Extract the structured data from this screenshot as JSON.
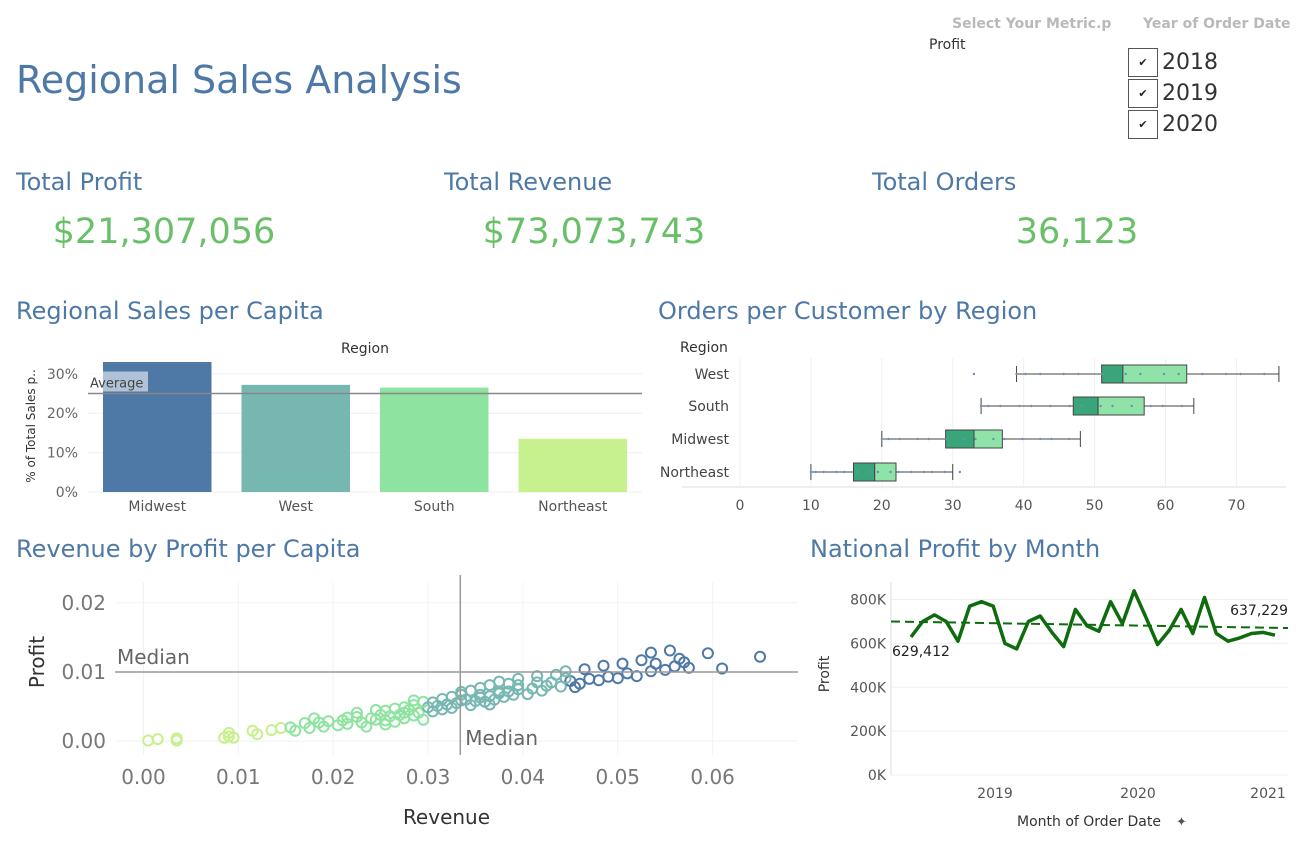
{
  "page": {
    "title": "Regional Sales Analysis"
  },
  "filters": {
    "metric": {
      "label": "Select Your Metric.p",
      "value": "Profit"
    },
    "year": {
      "label": "Year of Order Date",
      "options": [
        {
          "label": "2018",
          "checked": true
        },
        {
          "label": "2019",
          "checked": true
        },
        {
          "label": "2020",
          "checked": true
        }
      ],
      "check_glyph": "✔"
    }
  },
  "kpis": [
    {
      "title": "Total Profit",
      "value": "$21,307,056"
    },
    {
      "title": "Total Revenue",
      "value": "$73,073,743"
    },
    {
      "title": "Total Orders",
      "value": "36,123"
    }
  ],
  "colors": {
    "title": "#4e79a7",
    "kpi": "#6abf69",
    "dark_green": "#0e6b0e"
  },
  "chart_data": [
    {
      "id": "sales_per_capita",
      "type": "bar",
      "title": "Regional Sales per Capita",
      "header": "Region",
      "ylabel": "% of Total Sales p..",
      "categories": [
        "Midwest",
        "West",
        "South",
        "Northeast"
      ],
      "values": [
        0.333,
        0.272,
        0.265,
        0.135
      ],
      "colors": [
        "#4e79a7",
        "#76b7b2",
        "#8fe3a0",
        "#c7f08e"
      ],
      "ylim": [
        0,
        0.33
      ],
      "yticks": [
        "0%",
        "10%",
        "20%",
        "30%"
      ],
      "reference_line": {
        "label": "Average",
        "value": 0.25
      }
    },
    {
      "id": "orders_per_customer",
      "type": "boxplot",
      "title": "Orders per Customer by Region",
      "header": "Region",
      "categories": [
        "West",
        "South",
        "Midwest",
        "Northeast"
      ],
      "boxes": [
        {
          "min": 39,
          "q1": 51,
          "median": 54,
          "q3": 63,
          "max": 76
        },
        {
          "min": 34,
          "q1": 47,
          "median": 50.5,
          "q3": 57,
          "max": 64
        },
        {
          "min": 20,
          "q1": 29,
          "median": 33,
          "q3": 37,
          "max": 48
        },
        {
          "min": 10,
          "q1": 16,
          "median": 19,
          "q3": 22,
          "max": 30
        }
      ],
      "xlim": [
        0,
        77
      ],
      "xticks": [
        "0",
        "10",
        "20",
        "30",
        "40",
        "50",
        "60",
        "70"
      ],
      "box_colors": {
        "lower": "#3aa57a",
        "upper": "#8fe3a8"
      }
    },
    {
      "id": "revenue_by_profit",
      "type": "scatter",
      "title": "Revenue by Profit per Capita",
      "xlabel": "Revenue",
      "ylabel": "Profit",
      "xlim": [
        -0.003,
        0.069
      ],
      "ylim": [
        -0.002,
        0.023
      ],
      "xticks": [
        "0.00",
        "0.01",
        "0.02",
        "0.03",
        "0.04",
        "0.05",
        "0.06"
      ],
      "yticks": [
        "0.00",
        "0.01",
        "0.02"
      ],
      "median_labels": {
        "x": "Median",
        "y": "Median"
      },
      "median_x": 0.0334,
      "median_y": 0.01,
      "colors": [
        "#c7f08e",
        "#8fe3a0",
        "#76b7b2",
        "#4e79a7"
      ],
      "points": [
        [
          0.0005,
          0.0001
        ],
        [
          0.0015,
          0.0003
        ],
        [
          0.0035,
          0.0004
        ],
        [
          0.0035,
          0.0001
        ],
        [
          0.0085,
          0.0005
        ],
        [
          0.009,
          0.0007
        ],
        [
          0.0095,
          0.0005
        ],
        [
          0.009,
          0.0012
        ],
        [
          0.0115,
          0.0015
        ],
        [
          0.012,
          0.001
        ],
        [
          0.0135,
          0.0016
        ],
        [
          0.0145,
          0.0019
        ],
        [
          0.0155,
          0.002
        ],
        [
          0.016,
          0.0015
        ],
        [
          0.017,
          0.0026
        ],
        [
          0.0175,
          0.0019
        ],
        [
          0.018,
          0.0033
        ],
        [
          0.0185,
          0.0027
        ],
        [
          0.019,
          0.0021
        ],
        [
          0.0195,
          0.0029
        ],
        [
          0.0205,
          0.0023
        ],
        [
          0.021,
          0.003
        ],
        [
          0.0215,
          0.0025
        ],
        [
          0.0225,
          0.0035
        ],
        [
          0.023,
          0.0027
        ],
        [
          0.0235,
          0.0021
        ],
        [
          0.024,
          0.0033
        ],
        [
          0.0245,
          0.0031
        ],
        [
          0.025,
          0.0038
        ],
        [
          0.0255,
          0.003
        ],
        [
          0.026,
          0.0036
        ],
        [
          0.0265,
          0.0028
        ],
        [
          0.027,
          0.0038
        ],
        [
          0.0275,
          0.0033
        ],
        [
          0.028,
          0.0045
        ],
        [
          0.0285,
          0.0037
        ],
        [
          0.029,
          0.0041
        ],
        [
          0.0295,
          0.0031
        ],
        [
          0.03,
          0.0049
        ],
        [
          0.0305,
          0.0043
        ],
        [
          0.031,
          0.0051
        ],
        [
          0.0315,
          0.0046
        ],
        [
          0.032,
          0.0053
        ],
        [
          0.0325,
          0.0048
        ],
        [
          0.033,
          0.0055
        ],
        [
          0.034,
          0.006
        ],
        [
          0.0345,
          0.0052
        ],
        [
          0.035,
          0.0058
        ],
        [
          0.0355,
          0.0063
        ],
        [
          0.036,
          0.0057
        ],
        [
          0.0365,
          0.0065
        ],
        [
          0.037,
          0.006
        ],
        [
          0.0375,
          0.0069
        ],
        [
          0.038,
          0.0064
        ],
        [
          0.0385,
          0.0072
        ],
        [
          0.039,
          0.0067
        ],
        [
          0.0395,
          0.0075
        ],
        [
          0.0405,
          0.0068
        ],
        [
          0.041,
          0.0076
        ],
        [
          0.042,
          0.0073
        ],
        [
          0.0425,
          0.008
        ],
        [
          0.043,
          0.0085
        ],
        [
          0.044,
          0.0079
        ],
        [
          0.045,
          0.0087
        ],
        [
          0.046,
          0.0083
        ],
        [
          0.047,
          0.009
        ],
        [
          0.048,
          0.0088
        ],
        [
          0.049,
          0.0093
        ],
        [
          0.05,
          0.0091
        ],
        [
          0.051,
          0.0098
        ],
        [
          0.052,
          0.0094
        ],
        [
          0.0535,
          0.0101
        ],
        [
          0.054,
          0.0112
        ],
        [
          0.055,
          0.0103
        ],
        [
          0.056,
          0.0108
        ],
        [
          0.057,
          0.0114
        ],
        [
          0.0575,
          0.0106
        ],
        [
          0.0595,
          0.0127
        ],
        [
          0.061,
          0.0105
        ],
        [
          0.065,
          0.0122
        ],
        [
          0.0245,
          0.0045
        ],
        [
          0.0265,
          0.0047
        ],
        [
          0.0285,
          0.0052
        ],
        [
          0.0295,
          0.0057
        ],
        [
          0.0315,
          0.0061
        ],
        [
          0.0325,
          0.0064
        ],
        [
          0.0335,
          0.0067
        ],
        [
          0.0345,
          0.0073
        ],
        [
          0.0355,
          0.0077
        ],
        [
          0.0365,
          0.0081
        ],
        [
          0.0375,
          0.0086
        ],
        [
          0.0385,
          0.0083
        ],
        [
          0.0395,
          0.009
        ],
        [
          0.0415,
          0.0094
        ],
        [
          0.0435,
          0.0096
        ],
        [
          0.0445,
          0.0101
        ],
        [
          0.0465,
          0.0104
        ],
        [
          0.0485,
          0.0109
        ],
        [
          0.0505,
          0.0112
        ],
        [
          0.0525,
          0.0117
        ],
        [
          0.0215,
          0.0034
        ],
        [
          0.0225,
          0.0041
        ],
        [
          0.0255,
          0.0044
        ],
        [
          0.0275,
          0.0049
        ],
        [
          0.0305,
          0.0056
        ],
        [
          0.0335,
          0.0059
        ],
        [
          0.0355,
          0.0067
        ],
        [
          0.0375,
          0.0072
        ],
        [
          0.0395,
          0.0081
        ],
        [
          0.0415,
          0.0085
        ],
        [
          0.0555,
          0.0131
        ],
        [
          0.0565,
          0.0119
        ],
        [
          0.0535,
          0.0128
        ],
        [
          0.0445,
          0.0091
        ],
        [
          0.0455,
          0.0078
        ],
        [
          0.0335,
          0.0071
        ],
        [
          0.0365,
          0.0053
        ],
        [
          0.0285,
          0.0059
        ],
        [
          0.0275,
          0.0041
        ],
        [
          0.0255,
          0.0024
        ]
      ]
    },
    {
      "id": "national_profit",
      "type": "line",
      "title": "National Profit by Month",
      "xlabel": "Month of Order Date",
      "ylabel": "Profit",
      "xticks": [
        "2019",
        "2020",
        "2021"
      ],
      "yticks": [
        "0K",
        "200K",
        "400K",
        "600K",
        "800K"
      ],
      "ylim": [
        0,
        880000
      ],
      "start_label": "629,412",
      "end_label": "637,229",
      "values": [
        629412,
        700000,
        730000,
        700000,
        610000,
        770000,
        790000,
        770000,
        600000,
        575000,
        700000,
        725000,
        650000,
        585000,
        755000,
        680000,
        655000,
        790000,
        690000,
        840000,
        720000,
        595000,
        660000,
        755000,
        645000,
        810000,
        645000,
        610000,
        625000,
        645000,
        650000,
        637229
      ],
      "trend": [
        700000,
        670000
      ],
      "line_color": "#0e6b0e"
    }
  ]
}
